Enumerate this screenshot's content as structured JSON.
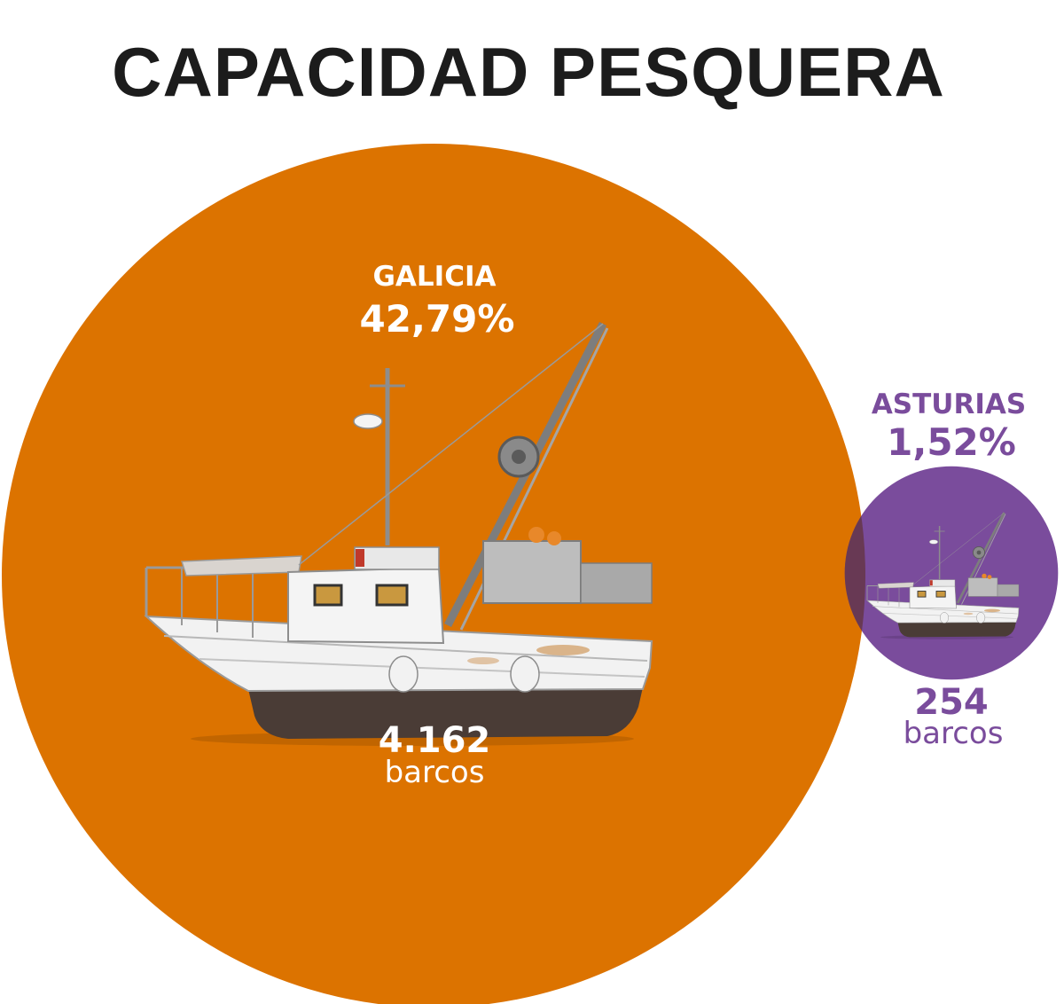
{
  "chart_data": {
    "type": "bubble",
    "title": "CAPACIDAD PESQUERA",
    "series": [
      {
        "name": "GALICIA",
        "share_label": "42,79%",
        "share": 42.79,
        "count_label": "4.162",
        "count": 4162,
        "unit": "barcos",
        "color": "#dc7300",
        "text_color": "#ffffff"
      },
      {
        "name": "ASTURIAS",
        "share_label": "1,52%",
        "share": 1.52,
        "count_label": "254",
        "count": 254,
        "unit": "barcos",
        "color": "#7a4c9c",
        "text_color": "#7a4c9c"
      }
    ],
    "icon": "fishing-boat-icon"
  }
}
